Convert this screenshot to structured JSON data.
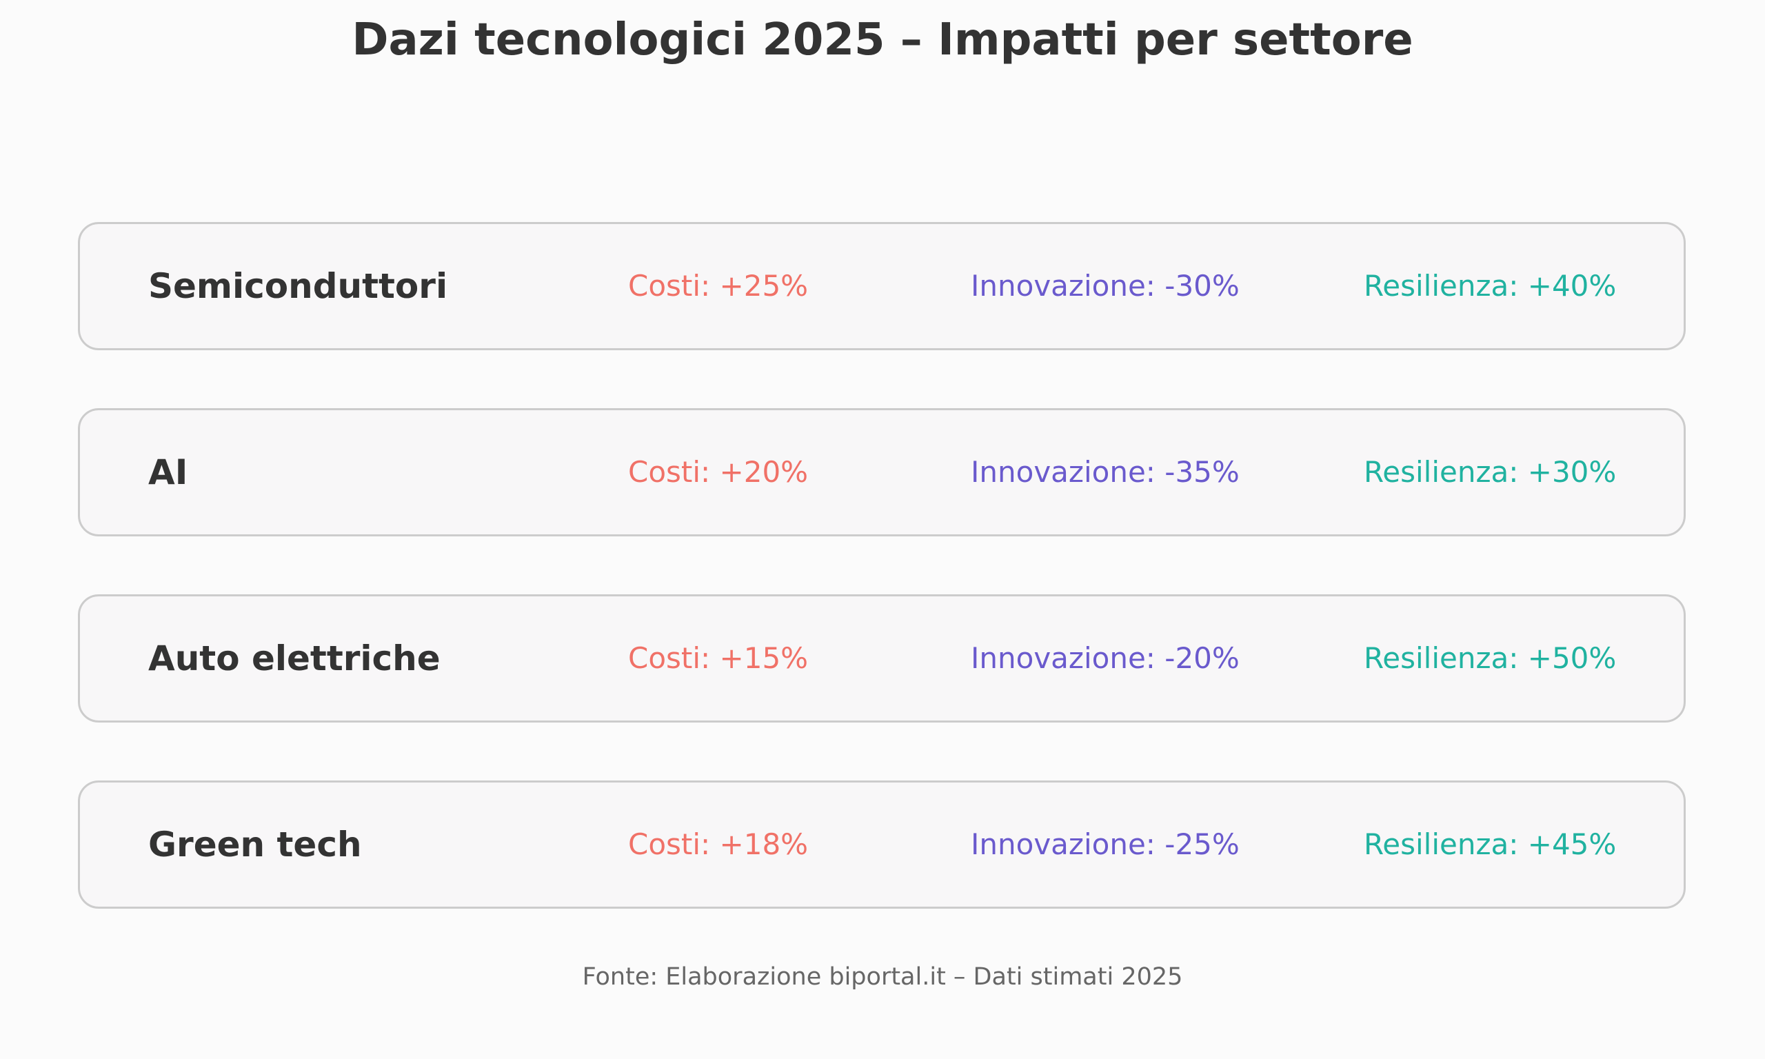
{
  "title": "Dazi tecnologici 2025 – Impatti per settore",
  "source": "Fonte: Elaborazione biportal.it – Dati stimati 2025",
  "colors": {
    "costi": "#f07167",
    "innovazione": "#6a5acd",
    "resilienza": "#20b2a0",
    "card_border": "#cccccc",
    "card_background": "#f8f7f8"
  },
  "chart_data": {
    "type": "table",
    "title": "Dazi tecnologici 2025 – Impatti per settore",
    "metric_labels": [
      "Costi",
      "Innovazione",
      "Resilienza"
    ],
    "rows": [
      {
        "sector": "Semiconduttori",
        "costi": "Costi: +25%",
        "innovazione": "Innovazione: -30%",
        "resilienza": "Resilienza: +40%",
        "values": {
          "costi": 25,
          "innovazione": -30,
          "resilienza": 40
        }
      },
      {
        "sector": "AI",
        "costi": "Costi: +20%",
        "innovazione": "Innovazione: -35%",
        "resilienza": "Resilienza: +30%",
        "values": {
          "costi": 20,
          "innovazione": -35,
          "resilienza": 30
        }
      },
      {
        "sector": "Auto elettriche",
        "costi": "Costi: +15%",
        "innovazione": "Innovazione: -20%",
        "resilienza": "Resilienza: +50%",
        "values": {
          "costi": 15,
          "innovazione": -20,
          "resilienza": 50
        }
      },
      {
        "sector": "Green tech",
        "costi": "Costi: +18%",
        "innovazione": "Innovazione: -25%",
        "resilienza": "Resilienza: +45%",
        "values": {
          "costi": 18,
          "innovazione": -25,
          "resilienza": 45
        }
      }
    ]
  }
}
